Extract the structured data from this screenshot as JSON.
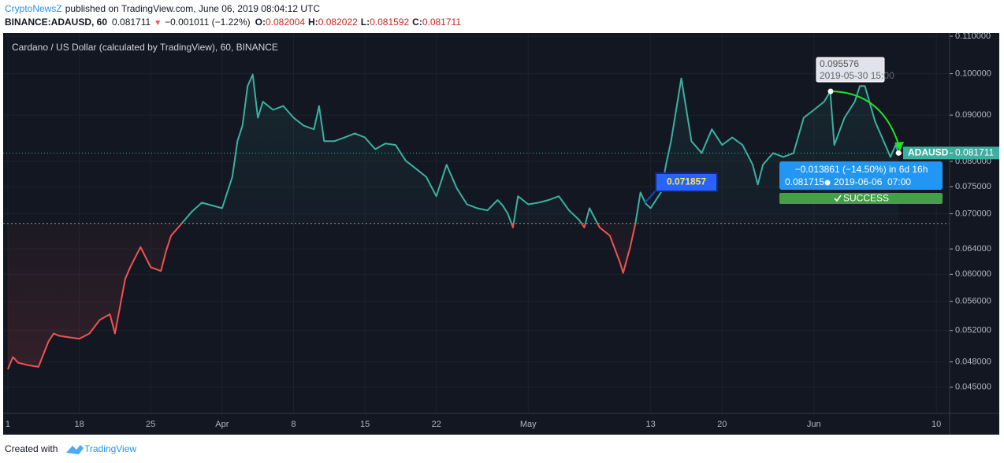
{
  "header": {
    "publisher": "CryptoNewsZ",
    "published": "published on TradingView.com, June 06, 2019 08:04:12 UTC",
    "symbol": "BINANCE:ADAUSD, 60",
    "price": "0.081711",
    "arrow": "▼",
    "change": "−0.001011 (−1.22%)",
    "o_label": "O:",
    "o": "0.082004",
    "h_label": "H:",
    "h": "0.082022",
    "l_label": "L:",
    "l": "0.081592",
    "c_label": "C:",
    "c": "0.081711"
  },
  "chart_data": {
    "type": "line",
    "title": "Cardano / US Dollar (calculated by TradingView), 60, BINANCE",
    "background": "#131722",
    "color_above": "#3bb0a0",
    "color_below": "#ef5350",
    "baseline": 0.0683,
    "log_scale": true,
    "grid": true,
    "x": [
      0,
      0.5,
      1,
      2,
      3,
      4,
      4.5,
      5,
      6,
      7,
      8,
      9,
      10,
      10.5,
      11,
      11.5,
      12,
      13,
      14,
      15,
      15.5,
      16,
      17,
      18,
      19,
      20,
      21,
      22,
      22.5,
      23,
      23.5,
      24,
      24.5,
      25,
      26,
      27,
      28,
      29,
      30,
      30.5,
      31,
      32,
      33,
      34,
      35,
      36,
      37,
      38,
      39,
      40,
      41,
      42,
      43,
      44,
      45,
      46,
      47,
      48,
      48.5,
      49,
      49.5,
      50,
      51,
      52,
      53,
      54,
      55,
      56,
      56.5,
      57,
      58,
      59,
      60,
      60.3,
      61,
      61.5,
      62,
      62.5,
      63,
      64,
      64.5,
      65,
      65.5,
      66,
      66.5,
      67,
      68,
      69,
      70,
      71,
      72,
      73,
      73.5,
      74,
      75,
      76,
      77,
      78,
      79,
      80,
      80.6,
      81,
      82,
      83,
      83.5,
      84,
      85,
      86,
      86.5,
      87,
      87.3
    ],
    "values": [
      0.0471,
      0.0486,
      0.0479,
      0.0476,
      0.0474,
      0.0506,
      0.0516,
      0.0513,
      0.0511,
      0.0509,
      0.0516,
      0.0534,
      0.0542,
      0.0516,
      0.0553,
      0.0593,
      0.0611,
      0.0643,
      0.0611,
      0.0605,
      0.0636,
      0.0662,
      0.0682,
      0.0703,
      0.072,
      0.0715,
      0.071,
      0.0769,
      0.0842,
      0.0876,
      0.0969,
      0.0998,
      0.0894,
      0.0931,
      0.0912,
      0.0921,
      0.0894,
      0.0876,
      0.0868,
      0.0921,
      0.0842,
      0.0842,
      0.085,
      0.0859,
      0.085,
      0.0825,
      0.0837,
      0.0834,
      0.0801,
      0.0785,
      0.0769,
      0.0732,
      0.0793,
      0.0747,
      0.0717,
      0.071,
      0.0706,
      0.0725,
      0.0715,
      0.07,
      0.0676,
      0.0732,
      0.0717,
      0.072,
      0.0725,
      0.0732,
      0.0706,
      0.0689,
      0.0676,
      0.071,
      0.0676,
      0.0662,
      0.0618,
      0.0602,
      0.0643,
      0.0682,
      0.0739,
      0.071857,
      0.071,
      0.0739,
      0.0793,
      0.0842,
      0.0912,
      0.0988,
      0.0912,
      0.0842,
      0.0817,
      0.0868,
      0.0834,
      0.085,
      0.0834,
      0.0793,
      0.0754,
      0.0793,
      0.0817,
      0.0809,
      0.0817,
      0.0894,
      0.0912,
      0.0931,
      0.095576,
      0.0834,
      0.0894,
      0.0931,
      0.0969,
      0.0969,
      0.0885,
      0.0834,
      0.0809,
      0.0834,
      0.081711
    ],
    "xlim": [
      -0.46,
      92.3
    ],
    "xticks": [
      {
        "value": 0,
        "label": "1"
      },
      {
        "value": 7,
        "label": "18"
      },
      {
        "value": 14,
        "label": "25"
      },
      {
        "value": 21,
        "label": "Apr"
      },
      {
        "value": 28,
        "label": "8"
      },
      {
        "value": 35,
        "label": "15"
      },
      {
        "value": 42,
        "label": "22"
      },
      {
        "value": 51,
        "label": "May"
      },
      {
        "value": 63,
        "label": "13"
      },
      {
        "value": 70,
        "label": "20"
      },
      {
        "value": 79,
        "label": "Jun"
      },
      {
        "value": 91,
        "label": "10"
      }
    ],
    "ylim": [
      0.0421,
      0.1109
    ],
    "yticks": [
      {
        "value": 0.11,
        "label": "0.110000"
      },
      {
        "value": 0.1,
        "label": "0.100000"
      },
      {
        "value": 0.09,
        "label": "0.090000"
      },
      {
        "value": 0.08,
        "label": "0.080000"
      },
      {
        "value": 0.075,
        "label": "0.075000"
      },
      {
        "value": 0.07,
        "label": "0.070000"
      },
      {
        "value": 0.064,
        "label": "0.064000"
      },
      {
        "value": 0.06,
        "label": "0.060000"
      },
      {
        "value": 0.056,
        "label": "0.056000"
      },
      {
        "value": 0.052,
        "label": "0.052000"
      },
      {
        "value": 0.048,
        "label": "0.048000"
      },
      {
        "value": 0.045,
        "label": "0.045000"
      }
    ],
    "price_label": {
      "symbol": "ADAUSD",
      "price": "0.081711"
    },
    "annotations": {
      "peak_price": "0.095576",
      "peak_time": "2019-05-30 15:00",
      "low_callout": "0.071857",
      "measure_change": "−0.013861 (−14.50%) in 6d 16h",
      "measure_price": "0.081715",
      "measure_time": "2019-06-06  07:00",
      "measure_status": "SUCCESS"
    }
  },
  "footer": {
    "created": "Created with",
    "brand": "TradingView"
  }
}
